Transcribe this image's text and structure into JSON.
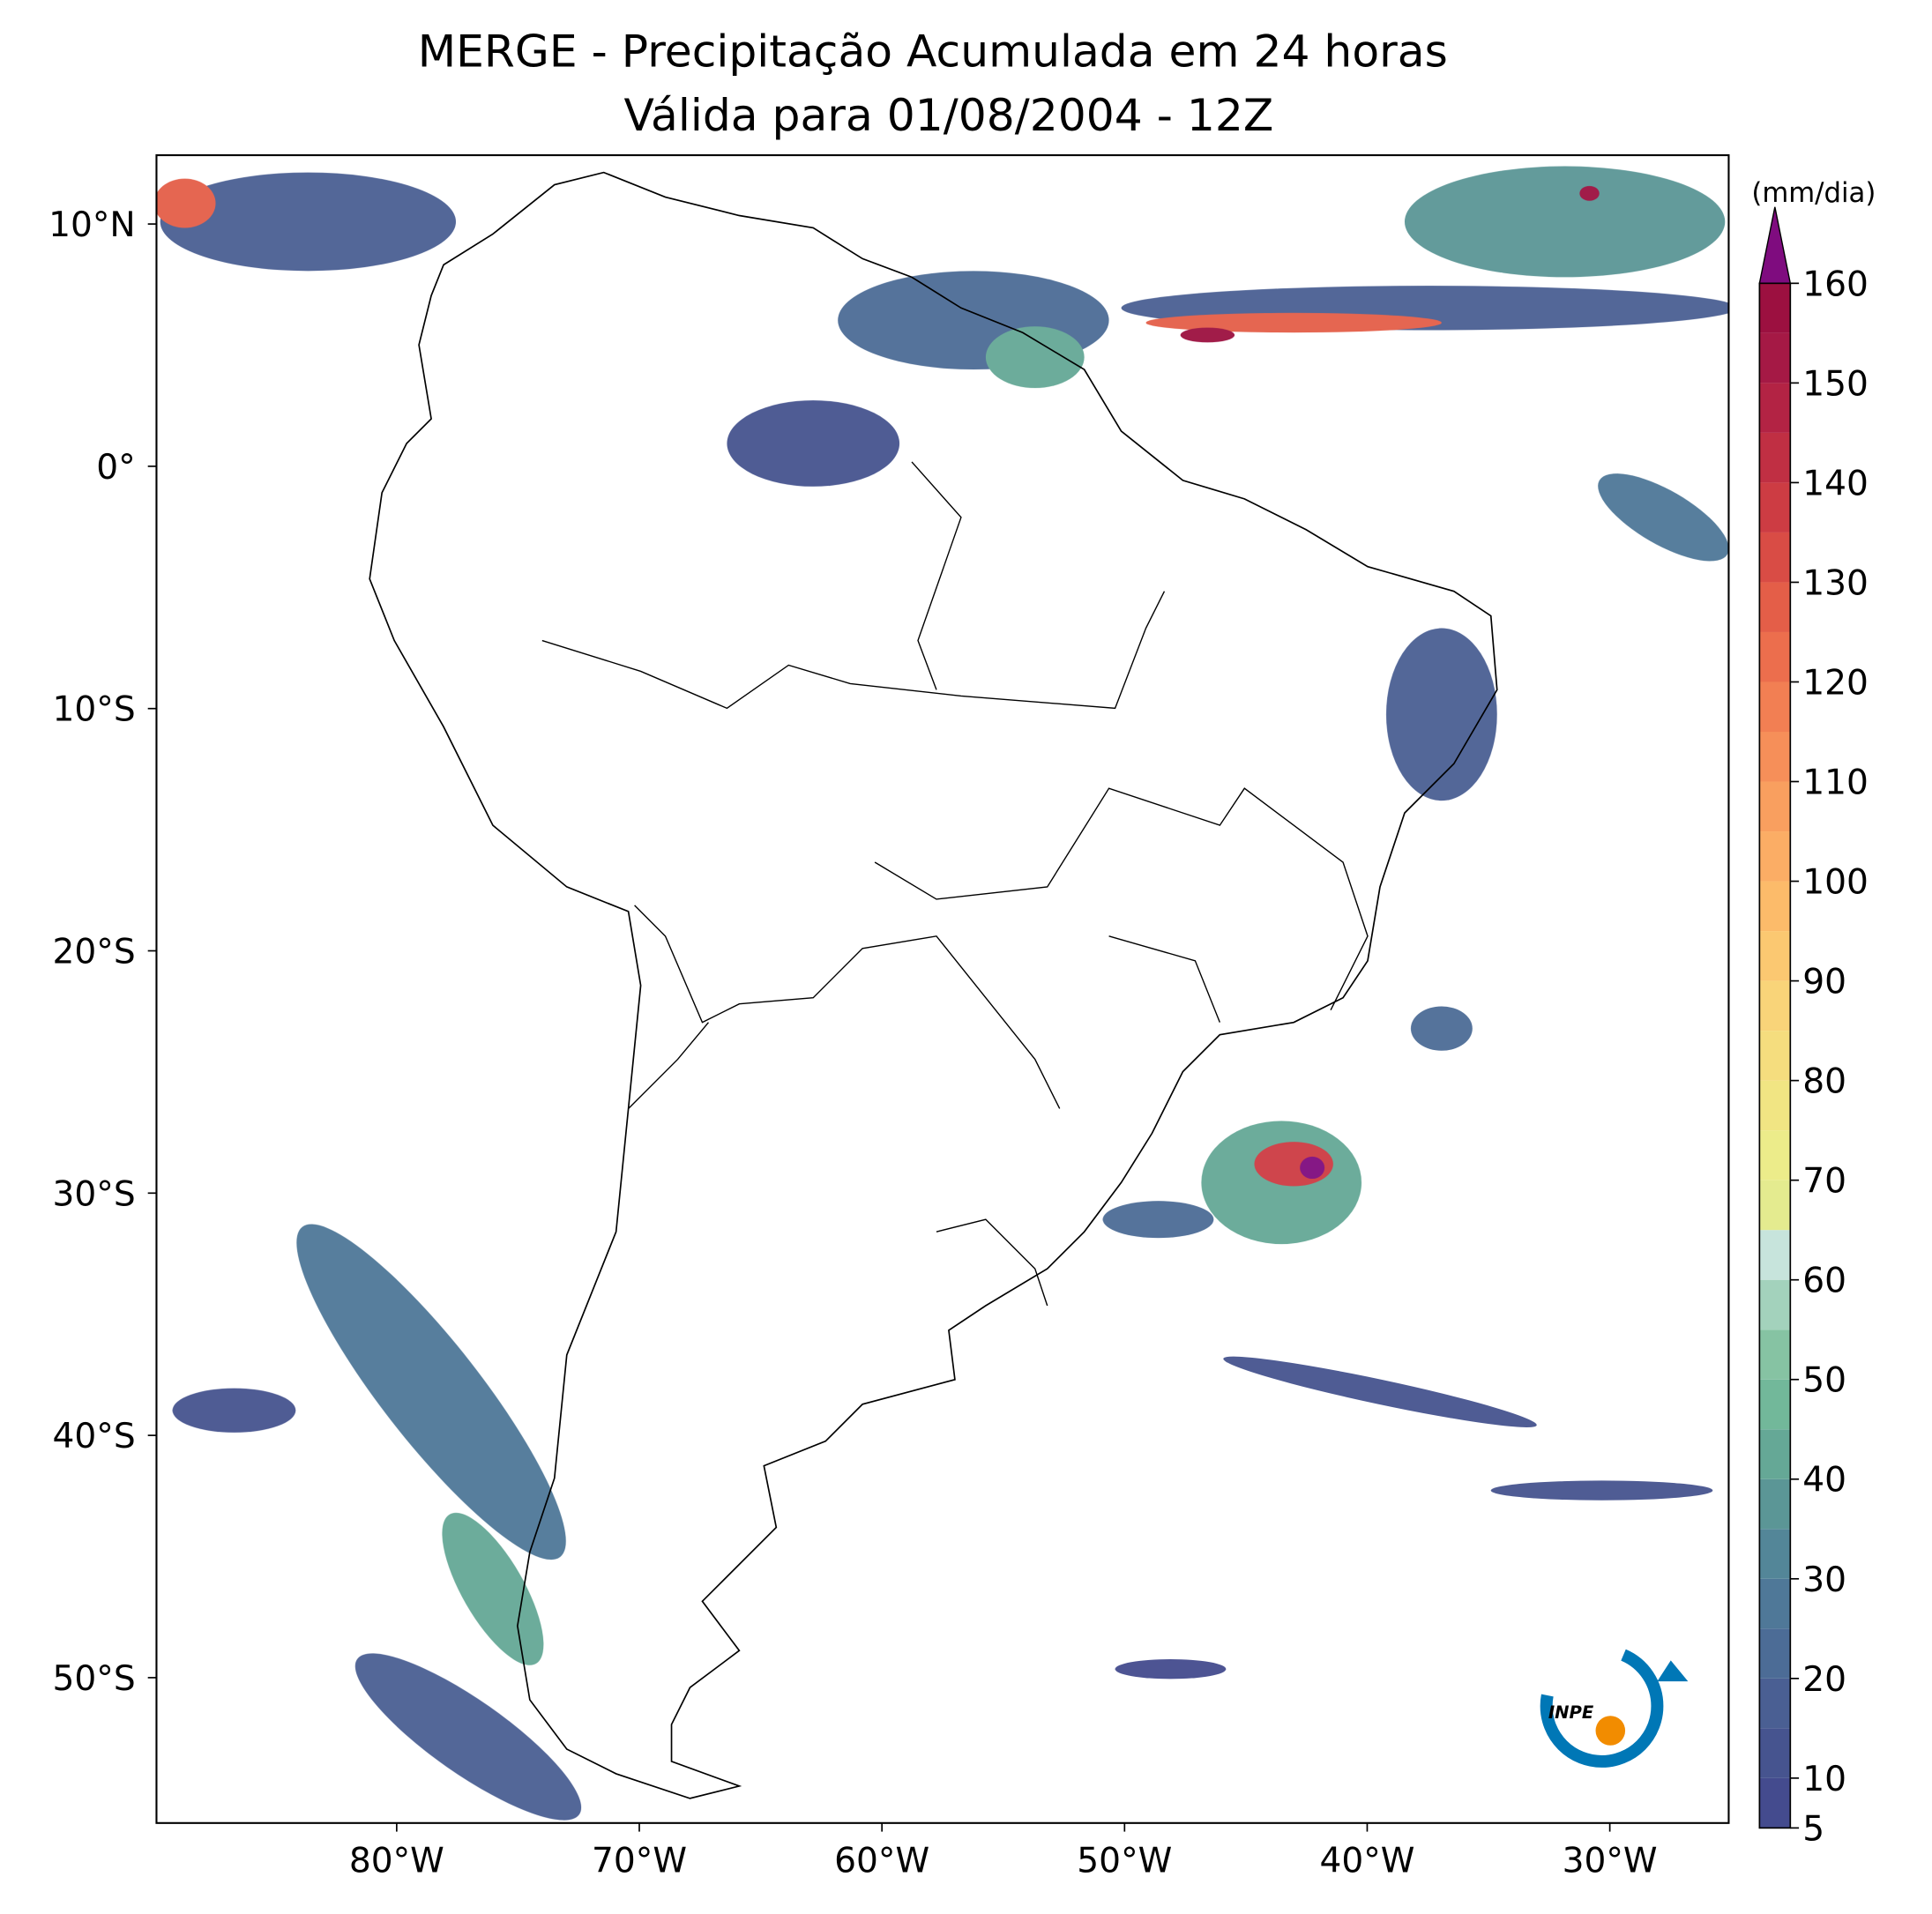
{
  "chart_data": {
    "type": "map",
    "title": "MERGE - Precipitação Acumulada em 24 horas",
    "subtitle": "Válida para 01/08/2004 - 12Z",
    "xlim": [
      -89.9,
      -25.1
    ],
    "ylim": [
      -56,
      12.84
    ],
    "xticks": [
      {
        "value": -80,
        "label": "80°W"
      },
      {
        "value": -70,
        "label": "70°W"
      },
      {
        "value": -60,
        "label": "60°W"
      },
      {
        "value": -50,
        "label": "50°W"
      },
      {
        "value": -40,
        "label": "40°W"
      },
      {
        "value": -30,
        "label": "30°W"
      }
    ],
    "yticks": [
      {
        "value": 10,
        "label": "10°N"
      },
      {
        "value": 0,
        "label": "0°"
      },
      {
        "value": -10,
        "label": "10°S"
      },
      {
        "value": -20,
        "label": "20°S"
      },
      {
        "value": -30,
        "label": "30°S"
      },
      {
        "value": -40,
        "label": "40°S"
      },
      {
        "value": -50,
        "label": "50°S"
      }
    ],
    "colorbar": {
      "label": "(mm/dia)",
      "ticks": [
        5,
        10,
        20,
        30,
        40,
        50,
        60,
        70,
        80,
        90,
        100,
        110,
        120,
        130,
        140,
        150,
        160
      ],
      "levels": [
        5,
        10,
        15,
        20,
        25,
        30,
        35,
        40,
        45,
        50,
        55,
        60,
        65,
        70,
        75,
        80,
        85,
        90,
        95,
        100,
        105,
        110,
        115,
        120,
        125,
        130,
        135,
        140,
        145,
        150,
        155,
        160
      ],
      "colors": [
        "#444b8e",
        "#46548f",
        "#4a5f93",
        "#4c6c96",
        "#4f7898",
        "#538698",
        "#5b9696",
        "#65a896",
        "#72b89a",
        "#86c3a3",
        "#a3d2bc",
        "#c7e4dc",
        "#e4eb8f",
        "#ecec8a",
        "#f1e583",
        "#f5dd7e",
        "#f9d479",
        "#fbc871",
        "#fcbb6a",
        "#fbad65",
        "#f99f5f",
        "#f68f59",
        "#f27f53",
        "#ec6e4d",
        "#e45e48",
        "#d94c45",
        "#cd3c43",
        "#c02f43",
        "#b32344",
        "#a51945",
        "#9c1040"
      ],
      "extend_color": "#7f0c7f"
    },
    "logo": "INPE"
  }
}
